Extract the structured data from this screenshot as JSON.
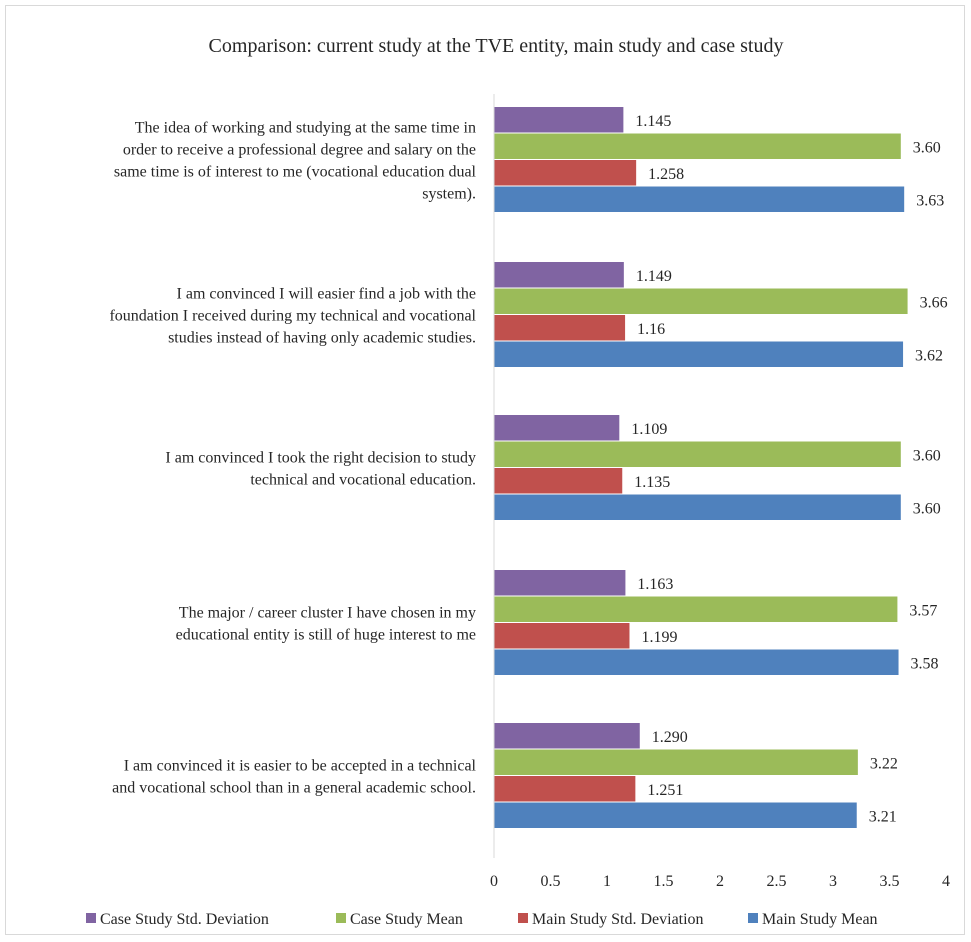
{
  "chart_data": {
    "type": "bar",
    "orientation": "horizontal",
    "title": "Comparison: current study at the TVE entity, main study and case study",
    "xlim": [
      0,
      4
    ],
    "x_ticks": [
      "0",
      "0.5",
      "1",
      "1.5",
      "2",
      "2.5",
      "3",
      "3.5",
      "4"
    ],
    "grid": false,
    "legend_position": "bottom",
    "categories": [
      [
        "The idea of working and studying at the same time in",
        "order to receive a professional degree and salary on the",
        "same time is of interest to me (vocational education dual",
        "system)."
      ],
      [
        "I am convinced I will easier find a job with the",
        "foundation I received during my technical and vocational",
        "studies instead of having only academic studies."
      ],
      [
        "I am convinced I took the right decision to study",
        "technical and vocational education."
      ],
      [
        "The major / career cluster I have chosen in my",
        "educational entity is still of huge interest to me"
      ],
      [
        "I am convinced it is easier to be accepted in a technical",
        "and vocational school than in a general academic school."
      ]
    ],
    "series": [
      {
        "name": "Case Study Std. Deviation",
        "color": "#8064a2",
        "values": [
          1.145,
          1.149,
          1.109,
          1.163,
          1.29
        ],
        "labels": [
          "1.145",
          "1.149",
          "1.109",
          "1.163",
          "1.290"
        ]
      },
      {
        "name": "Case Study Mean",
        "color": "#9bbb59",
        "values": [
          3.6,
          3.66,
          3.6,
          3.57,
          3.22
        ],
        "labels": [
          "3.60",
          "3.66",
          "3.60",
          "3.57",
          "3.22"
        ]
      },
      {
        "name": "Main Study Std. Deviation",
        "color": "#c0504d",
        "values": [
          1.258,
          1.16,
          1.135,
          1.199,
          1.251
        ],
        "labels": [
          "1.258",
          "1.16",
          "1.135",
          "1.199",
          "1.251"
        ]
      },
      {
        "name": "Main Study Mean",
        "color": "#4f81bd",
        "values": [
          3.63,
          3.62,
          3.6,
          3.58,
          3.21
        ],
        "labels": [
          "3.63",
          "3.62",
          "3.60",
          "3.58",
          "3.21"
        ]
      }
    ]
  }
}
